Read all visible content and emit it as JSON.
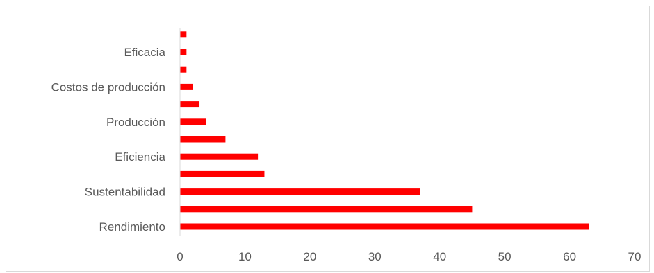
{
  "chart_data": {
    "type": "bar",
    "orientation": "horizontal",
    "categories": [
      "Rendimiento",
      "",
      "Sustentabilidad",
      "",
      "Eficiencia",
      "",
      "Producción",
      "",
      "Costos de producción",
      "",
      "Eficacia",
      ""
    ],
    "values": [
      63,
      45,
      37,
      13,
      12,
      7,
      4,
      3,
      2,
      1,
      1,
      1
    ],
    "xlim": [
      0,
      70
    ],
    "xticks": [
      0,
      10,
      20,
      30,
      40,
      50,
      60,
      70
    ],
    "grid": false,
    "bar_color": "#ff0000",
    "axis_color": "#d9d9d9"
  }
}
